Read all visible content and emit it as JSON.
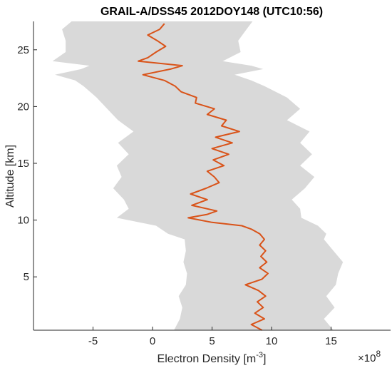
{
  "chart_data": {
    "type": "line",
    "title": "GRAIL-A/DSS45 2012DOY148 (UTC10:56)",
    "xlabel": "Electron Density [m",
    "xlabel_sup": "-3",
    "xlabel_close": "]",
    "ylabel": "Altitude [km]",
    "x_multiplier": "×10",
    "x_multiplier_exp": "8",
    "xlim": [
      -10,
      20
    ],
    "ylim": [
      0.3,
      27.5
    ],
    "xticks": [
      -5,
      0,
      5,
      10,
      15
    ],
    "xtick_labels": [
      "-5",
      "0",
      "5",
      "10",
      "15"
    ],
    "yticks": [
      5,
      10,
      15,
      20,
      25
    ],
    "ytick_labels": [
      "5",
      "10",
      "15",
      "20",
      "25"
    ],
    "grid": false,
    "colors": {
      "line": "#d95319",
      "band": "#d9d9d9",
      "axis": "#262626"
    },
    "series": [
      {
        "role": "mean",
        "altitude": [
          0.3,
          0.8,
          1.3,
          1.8,
          2.3,
          2.8,
          3.3,
          3.8,
          4.3,
          4.8,
          5.3,
          5.8,
          6.3,
          6.8,
          7.3,
          7.8,
          8.3,
          8.8,
          9.2,
          9.5,
          9.8,
          10.2,
          10.5,
          10.8,
          11.3,
          11.8,
          12.3,
          12.8,
          13.3,
          13.8,
          14.3,
          14.8,
          15.3,
          15.8,
          16.3,
          16.8,
          17.3,
          17.8,
          18.3,
          18.8,
          19.3,
          19.8,
          20.3,
          20.8,
          21.3,
          21.8,
          22.3,
          22.8,
          23.3,
          23.6,
          24.0,
          24.3,
          24.8,
          25.3,
          25.8,
          26.3,
          26.8,
          27.3
        ],
        "density": [
          9.2,
          8.3,
          9.4,
          8.6,
          9.3,
          8.8,
          9.5,
          8.9,
          7.8,
          9.2,
          9.7,
          9.0,
          9.6,
          9.1,
          9.5,
          9.0,
          9.4,
          9.0,
          8.3,
          7.5,
          5.0,
          3.0,
          4.6,
          5.4,
          3.3,
          4.6,
          3.2,
          4.5,
          5.6,
          5.2,
          4.6,
          6.0,
          5.1,
          6.4,
          5.0,
          6.7,
          5.3,
          7.3,
          5.8,
          6.2,
          4.6,
          5.2,
          3.6,
          3.7,
          2.4,
          1.9,
          1.0,
          -0.8,
          1.5,
          2.5,
          -1.2,
          -0.4,
          0.3,
          1.1,
          0.4,
          -0.4,
          0.6,
          1.0
        ]
      },
      {
        "role": "lower-bound",
        "altitude": [
          0.3,
          1.3,
          2.3,
          3.3,
          4.3,
          5.3,
          6.3,
          7.3,
          8.3,
          8.8,
          9.5,
          10.2,
          11.0,
          11.8,
          12.8,
          13.8,
          14.8,
          15.8,
          16.8,
          17.8,
          18.8,
          19.8,
          20.8,
          21.8,
          22.3,
          22.8,
          23.3,
          23.6,
          24.0,
          24.8,
          25.8,
          26.8,
          27.5
        ],
        "density": [
          1.8,
          2.3,
          2.5,
          2.2,
          2.8,
          2.9,
          2.6,
          2.8,
          2.7,
          1.3,
          0.3,
          -3.0,
          -2.0,
          -2.4,
          -3.3,
          -2.6,
          -3.0,
          -2.0,
          -2.9,
          -1.6,
          -2.9,
          -3.8,
          -4.7,
          -5.8,
          -6.5,
          -8.2,
          -6.0,
          -5.3,
          -8.4,
          -7.3,
          -7.3,
          -7.6,
          -6.8
        ]
      },
      {
        "role": "upper-bound",
        "altitude": [
          0.3,
          1.3,
          2.3,
          3.3,
          4.3,
          5.3,
          6.3,
          7.3,
          8.3,
          8.8,
          9.5,
          10.2,
          11.0,
          11.8,
          12.8,
          13.8,
          14.8,
          15.8,
          16.8,
          17.8,
          18.8,
          19.8,
          20.8,
          21.8,
          22.3,
          22.8,
          23.3,
          23.6,
          24.0,
          24.8,
          25.8,
          26.8,
          27.5
        ],
        "density": [
          15.2,
          14.4,
          15.3,
          14.6,
          15.4,
          15.6,
          16.0,
          15.2,
          14.4,
          14.6,
          13.9,
          12.5,
          12.4,
          11.7,
          12.8,
          13.6,
          12.4,
          13.4,
          12.4,
          13.2,
          11.3,
          12.4,
          11.3,
          9.4,
          8.3,
          6.9,
          9.3,
          8.3,
          5.9,
          7.4,
          7.2,
          7.9,
          8.4
        ]
      }
    ]
  }
}
